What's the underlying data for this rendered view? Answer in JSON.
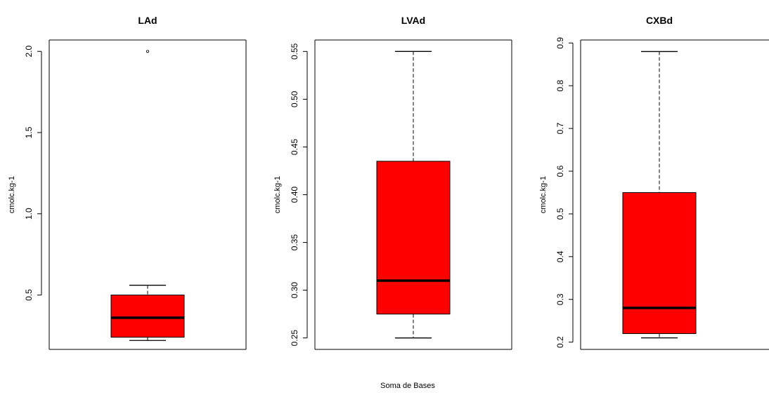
{
  "chart_data": {
    "type": "boxplot",
    "xlabel": "Soma de Bases",
    "colors": {
      "box_fill": "#ff0000",
      "outline": "#000000",
      "median": "#000000",
      "background": "#ffffff"
    },
    "panels": [
      {
        "title": "LAd",
        "ylabel": "cmolc.kg-1",
        "ylim": [
          0.165,
          2.07
        ],
        "yticks": [
          0.5,
          1.0,
          1.5,
          2.0
        ],
        "ytick_labels": [
          "0.5",
          "1.0",
          "1.5",
          "2.0"
        ],
        "box": {
          "whisker_low": 0.22,
          "q1": 0.24,
          "median": 0.36,
          "q3": 0.5,
          "whisker_high": 0.56,
          "outliers": [
            2.0
          ]
        }
      },
      {
        "title": "LVAd",
        "ylabel": "cmolc.kg-1",
        "ylim": [
          0.238,
          0.562
        ],
        "yticks": [
          0.25,
          0.3,
          0.35,
          0.4,
          0.45,
          0.5,
          0.55
        ],
        "ytick_labels": [
          "0.25",
          "0.30",
          "0.35",
          "0.40",
          "0.45",
          "0.50",
          "0.55"
        ],
        "box": {
          "whisker_low": 0.25,
          "q1": 0.275,
          "median": 0.31,
          "q3": 0.435,
          "whisker_high": 0.55,
          "outliers": []
        }
      },
      {
        "title": "CXBd",
        "ylabel": "cmolc.kg-1",
        "ylim": [
          0.183,
          0.907
        ],
        "yticks": [
          0.2,
          0.3,
          0.4,
          0.5,
          0.6,
          0.7,
          0.8,
          0.9
        ],
        "ytick_labels": [
          "0.2",
          "0.3",
          "0.4",
          "0.5",
          "0.6",
          "0.7",
          "0.8",
          "0.9"
        ],
        "box": {
          "whisker_low": 0.21,
          "q1": 0.22,
          "median": 0.28,
          "q3": 0.55,
          "whisker_high": 0.88,
          "outliers": []
        }
      }
    ]
  }
}
